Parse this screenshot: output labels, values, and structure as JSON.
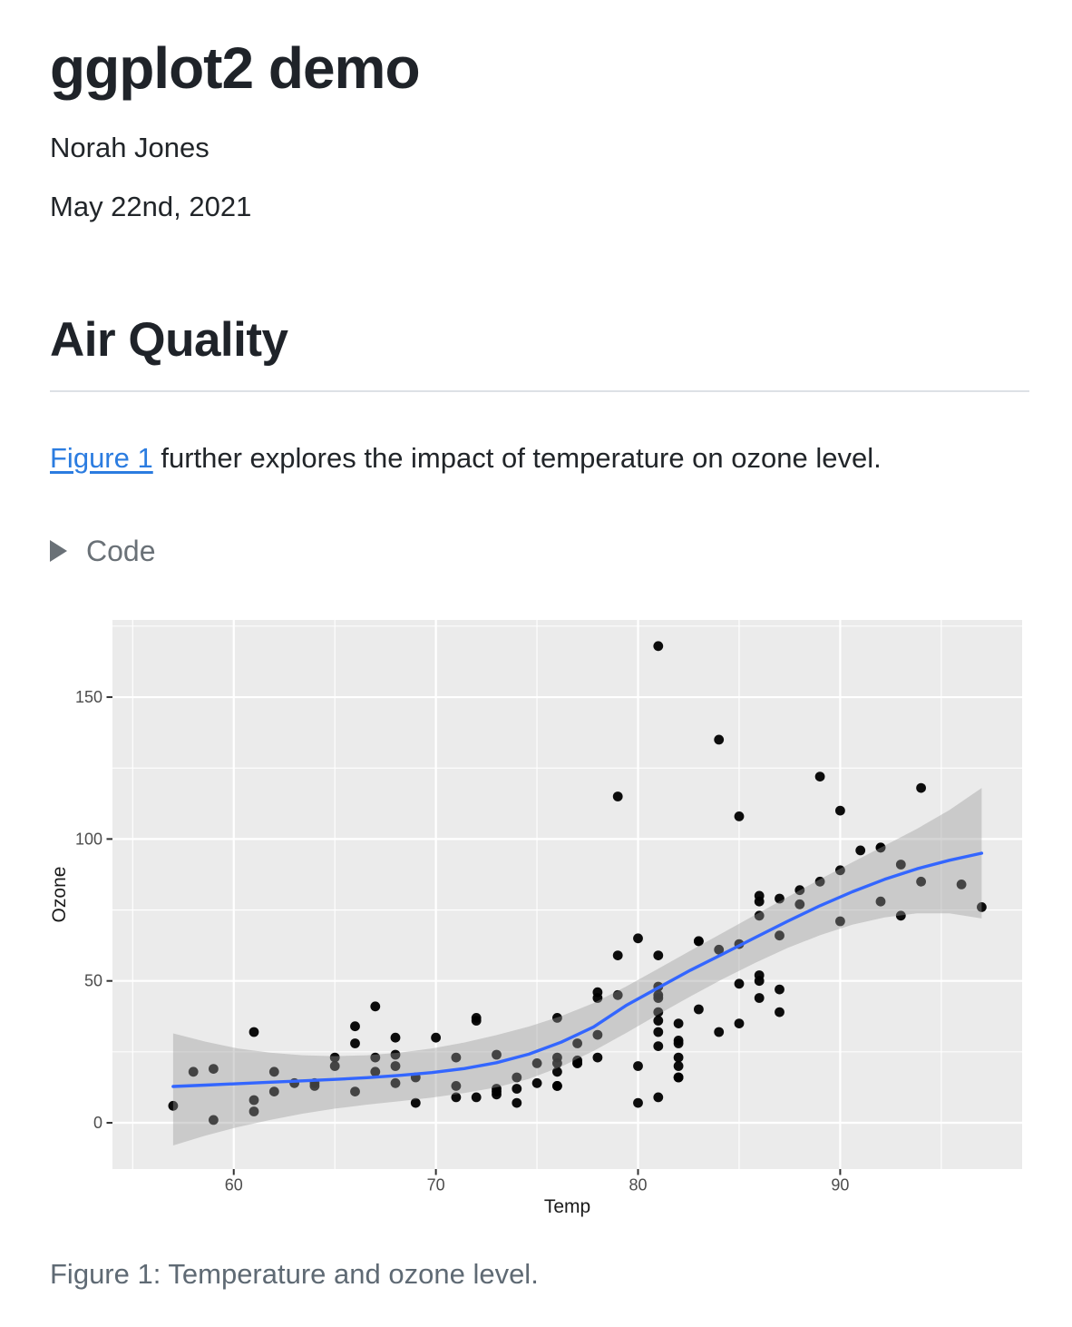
{
  "document": {
    "title": "ggplot2 demo",
    "author": "Norah Jones",
    "date": "May 22nd, 2021"
  },
  "section": {
    "heading": "Air Quality",
    "intro": {
      "link_text": "Figure 1",
      "rest_text": " further explores the impact of temperature on ozone level."
    }
  },
  "code_disclosure": {
    "label": "Code",
    "state": "collapsed",
    "icon": "triangle-right-icon"
  },
  "figure": {
    "caption": "Figure 1: Temperature and ozone level."
  },
  "colors": {
    "link": "#2b7ce0",
    "muted_text": "#6a7177",
    "caption_text": "#5f6a74",
    "heading_rule": "#dde1e6"
  },
  "chart_data": {
    "type": "scatter",
    "title": "",
    "xlabel": "Temp",
    "ylabel": "Ozone",
    "xlim": [
      54,
      99
    ],
    "ylim": [
      -16.3,
      177.2
    ],
    "x_ticks": [
      60,
      70,
      80,
      90
    ],
    "y_ticks": [
      0,
      50,
      100,
      150
    ],
    "x_minor_ticks": [
      55,
      65,
      75,
      85,
      95
    ],
    "y_minor_ticks": [
      25,
      75,
      125,
      175
    ],
    "grid": "on",
    "legend": "none",
    "panel_bg": "#EBEBEB",
    "grid_color": "#FFFFFF",
    "tick_mark_color": "#333333",
    "tick_label_color": "#4D4D4D",
    "axis_title_color": "#1A1A1A",
    "point_color": "#000000",
    "smooth_line_color": "#3366FF",
    "band_color": "#999999",
    "band_opacity": 0.4,
    "points_xy": [
      [
        67,
        41
      ],
      [
        72,
        36
      ],
      [
        74,
        12
      ],
      [
        62,
        18
      ],
      [
        66,
        28
      ],
      [
        65,
        23
      ],
      [
        59,
        19
      ],
      [
        61,
        8
      ],
      [
        74,
        7
      ],
      [
        69,
        16
      ],
      [
        66,
        11
      ],
      [
        68,
        14
      ],
      [
        58,
        18
      ],
      [
        64,
        14
      ],
      [
        66,
        34
      ],
      [
        57,
        6
      ],
      [
        68,
        30
      ],
      [
        62,
        11
      ],
      [
        59,
        1
      ],
      [
        73,
        11
      ],
      [
        61,
        4
      ],
      [
        61,
        32
      ],
      [
        67,
        23
      ],
      [
        81,
        45
      ],
      [
        79,
        115
      ],
      [
        76,
        37
      ],
      [
        82,
        29
      ],
      [
        90,
        71
      ],
      [
        87,
        39
      ],
      [
        82,
        23
      ],
      [
        77,
        21
      ],
      [
        72,
        37
      ],
      [
        65,
        20
      ],
      [
        73,
        12
      ],
      [
        76,
        13
      ],
      [
        84,
        135
      ],
      [
        85,
        49
      ],
      [
        81,
        32
      ],
      [
        83,
        64
      ],
      [
        83,
        40
      ],
      [
        88,
        77
      ],
      [
        92,
        97
      ],
      [
        92,
        97
      ],
      [
        89,
        85
      ],
      [
        73,
        10
      ],
      [
        81,
        27
      ],
      [
        80,
        7
      ],
      [
        81,
        48
      ],
      [
        82,
        35
      ],
      [
        84,
        61
      ],
      [
        87,
        79
      ],
      [
        85,
        63
      ],
      [
        74,
        16
      ],
      [
        86,
        80
      ],
      [
        85,
        108
      ],
      [
        82,
        20
      ],
      [
        86,
        52
      ],
      [
        88,
        82
      ],
      [
        86,
        50
      ],
      [
        83,
        64
      ],
      [
        81,
        59
      ],
      [
        81,
        39
      ],
      [
        81,
        9
      ],
      [
        82,
        16
      ],
      [
        86,
        78
      ],
      [
        85,
        35
      ],
      [
        87,
        66
      ],
      [
        89,
        122
      ],
      [
        90,
        89
      ],
      [
        90,
        110
      ],
      [
        86,
        44
      ],
      [
        82,
        28
      ],
      [
        80,
        65
      ],
      [
        77,
        22
      ],
      [
        79,
        59
      ],
      [
        76,
        23
      ],
      [
        78,
        31
      ],
      [
        78,
        44
      ],
      [
        77,
        21
      ],
      [
        72,
        9
      ],
      [
        79,
        45
      ],
      [
        81,
        168
      ],
      [
        86,
        73
      ],
      [
        97,
        76
      ],
      [
        94,
        118
      ],
      [
        96,
        84
      ],
      [
        94,
        85
      ],
      [
        91,
        96
      ],
      [
        92,
        78
      ],
      [
        93,
        73
      ],
      [
        93,
        91
      ],
      [
        87,
        47
      ],
      [
        84,
        32
      ],
      [
        80,
        20
      ],
      [
        78,
        23
      ],
      [
        75,
        21
      ],
      [
        73,
        24
      ],
      [
        81,
        44
      ],
      [
        76,
        21
      ],
      [
        77,
        28
      ],
      [
        71,
        9
      ],
      [
        71,
        13
      ],
      [
        78,
        46
      ],
      [
        67,
        18
      ],
      [
        76,
        13
      ],
      [
        68,
        24
      ],
      [
        82,
        16
      ],
      [
        64,
        13
      ],
      [
        71,
        23
      ],
      [
        81,
        36
      ],
      [
        69,
        7
      ],
      [
        63,
        14
      ],
      [
        70,
        30
      ],
      [
        75,
        14
      ],
      [
        76,
        18
      ],
      [
        68,
        20
      ]
    ],
    "smooth_line": {
      "x": [
        57,
        58.6,
        60.2,
        61.8,
        63.4,
        65,
        66.6,
        68.2,
        69.8,
        71.4,
        73,
        74.6,
        76.2,
        77.8,
        79.4,
        81,
        82.6,
        84.2,
        85.8,
        87.4,
        89,
        90.6,
        92.2,
        93.8,
        95.4,
        97
      ],
      "y": [
        12.8,
        13.3,
        13.8,
        14.3,
        14.8,
        15.3,
        15.9,
        16.7,
        17.7,
        19.1,
        21.2,
        24.2,
        28.4,
        33.8,
        41.3,
        47.6,
        53.8,
        59.5,
        65.3,
        71.0,
        76.5,
        81.4,
        85.8,
        89.5,
        92.5,
        95.0
      ],
      "ymin": [
        -8,
        -4.5,
        -1.5,
        1.0,
        3.2,
        5.0,
        6.4,
        7.6,
        8.9,
        10.5,
        12.5,
        15.5,
        19.8,
        25.3,
        31.6,
        38.2,
        44.6,
        50.7,
        56.4,
        61.6,
        66.1,
        69.8,
        72.4,
        73.8,
        73.8,
        72.0
      ],
      "ymax": [
        31.5,
        28.6,
        26.2,
        24.7,
        23.8,
        23.5,
        23.8,
        24.7,
        26.2,
        28.3,
        30.9,
        33.9,
        37.6,
        42.2,
        48.0,
        54.3,
        60.7,
        67.0,
        73.3,
        79.6,
        85.8,
        91.8,
        97.7,
        103.6,
        110.2,
        118.0
      ]
    }
  }
}
